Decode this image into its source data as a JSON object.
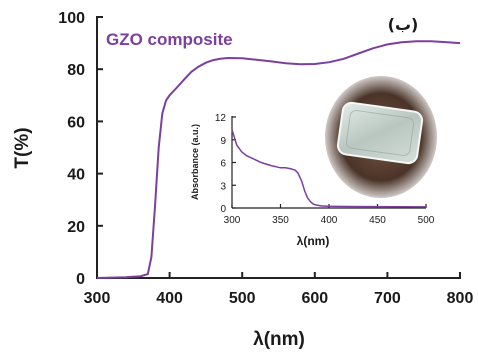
{
  "chart_data": [
    {
      "type": "line",
      "xlabel": "λ(nm)",
      "ylabel": "T(%)",
      "xlim": [
        300,
        800
      ],
      "ylim": [
        0,
        100
      ],
      "xticks": [
        "300",
        "400",
        "500",
        "600",
        "700",
        "800"
      ],
      "yticks": [
        "0",
        "20",
        "40",
        "60",
        "80",
        "100"
      ],
      "legend_position": "top-left",
      "corner_label": "(ب)",
      "grid": false,
      "line_color": "#7b3f9e",
      "legend_color": "#7b3f9e",
      "series": [
        {
          "name": "GZO composite",
          "x": [
            300,
            340,
            360,
            370,
            375,
            380,
            385,
            390,
            395,
            400,
            410,
            420,
            430,
            440,
            450,
            460,
            470,
            480,
            500,
            520,
            540,
            560,
            580,
            600,
            620,
            640,
            660,
            680,
            700,
            720,
            740,
            760,
            780,
            800
          ],
          "y": [
            0,
            0.3,
            0.7,
            1.5,
            8,
            28,
            50,
            63,
            68,
            70,
            73,
            76,
            79,
            81,
            82.5,
            83.5,
            84,
            84.3,
            84.2,
            83.6,
            83,
            82.3,
            81.9,
            82,
            82.7,
            84,
            86,
            88,
            89.5,
            90.3,
            90.7,
            90.7,
            90.4,
            90
          ]
        }
      ]
    },
    {
      "type": "line",
      "xlabel": "λ(nm)",
      "ylabel": "Absorbance  (a.u.)",
      "xlim": [
        300,
        500
      ],
      "ylim": [
        0,
        12
      ],
      "xticks": [
        "300",
        "350",
        "400",
        "450",
        "500"
      ],
      "yticks": [
        "0",
        "3",
        "6",
        "9",
        "12"
      ],
      "grid": false,
      "line_color": "#7b3f9e",
      "series": [
        {
          "x": [
            300,
            305,
            310,
            315,
            320,
            330,
            340,
            350,
            355,
            360,
            365,
            368,
            372,
            375,
            378,
            381,
            384,
            388,
            392,
            396,
            400,
            420,
            450,
            500
          ],
          "y": [
            10.3,
            8.3,
            7.4,
            6.9,
            6.6,
            6.0,
            5.6,
            5.3,
            5.3,
            5.2,
            5.0,
            4.6,
            3.5,
            2.2,
            1.3,
            0.8,
            0.5,
            0.35,
            0.28,
            0.25,
            0.22,
            0.2,
            0.18,
            0.15
          ]
        }
      ]
    }
  ]
}
